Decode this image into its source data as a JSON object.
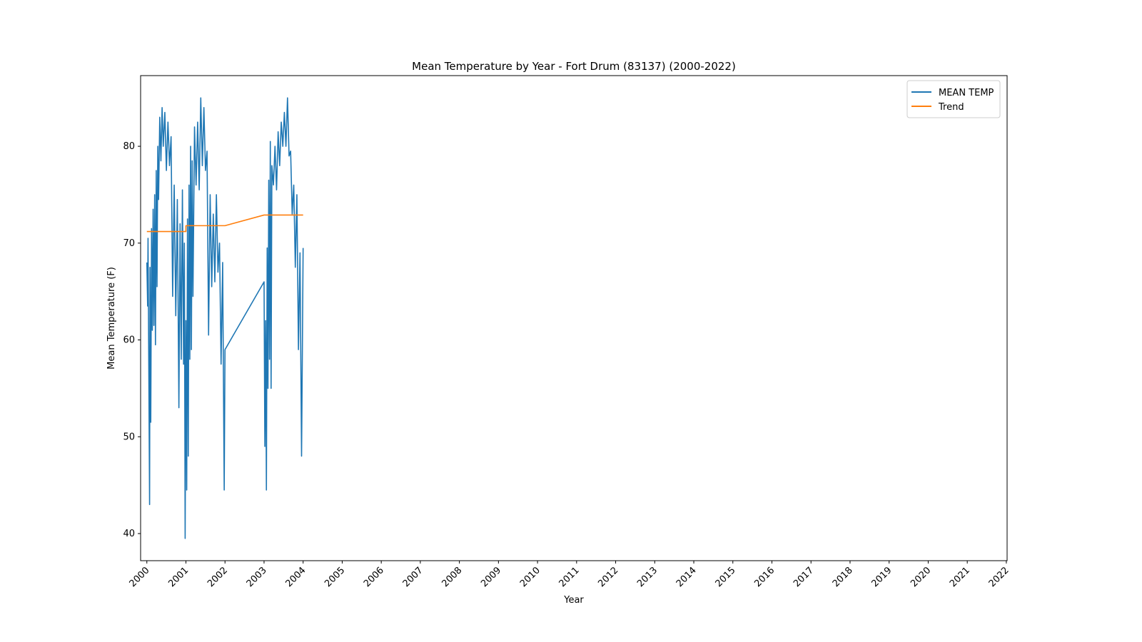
{
  "chart_data": {
    "type": "line",
    "title": "Mean Temperature by Year - Fort Drum (83137) (2000-2022)",
    "xlabel": "Year",
    "ylabel": "Mean Temperature (F)",
    "xlim": [
      1999.84,
      2022.02
    ],
    "ylim": [
      37.2,
      87.3
    ],
    "xticks": [
      2000,
      2001,
      2002,
      2003,
      2004,
      2005,
      2006,
      2007,
      2008,
      2009,
      2010,
      2011,
      2012,
      2013,
      2014,
      2015,
      2016,
      2017,
      2018,
      2019,
      2020,
      2021,
      2022
    ],
    "yticks": [
      40,
      50,
      60,
      70,
      80
    ],
    "legend": "upper right",
    "grid": false,
    "series": [
      {
        "name": "MEAN TEMP",
        "color": "#1f77b4",
        "x": [
          2000.0,
          2000.02,
          2000.03,
          2000.05,
          2000.07,
          2000.08,
          2000.1,
          2000.12,
          2000.14,
          2000.16,
          2000.18,
          2000.2,
          2000.22,
          2000.24,
          2000.26,
          2000.28,
          2000.3,
          2000.33,
          2000.36,
          2000.39,
          2000.42,
          2000.46,
          2000.5,
          2000.54,
          2000.58,
          2000.62,
          2000.66,
          2000.7,
          2000.74,
          2000.78,
          2000.82,
          2000.85,
          2000.88,
          2000.91,
          2000.94,
          2000.96,
          2000.98,
          2001.0,
          2001.02,
          2001.04,
          2001.06,
          2001.08,
          2001.1,
          2001.12,
          2001.14,
          2001.16,
          2001.18,
          2001.22,
          2001.26,
          2001.3,
          2001.34,
          2001.38,
          2001.42,
          2001.46,
          2001.5,
          2001.54,
          2001.58,
          2001.62,
          2001.66,
          2001.7,
          2001.74,
          2001.78,
          2001.82,
          2001.86,
          2001.9,
          2001.94,
          2001.98,
          2002.0,
          2003.0,
          2003.02,
          2003.04,
          2003.06,
          2003.08,
          2003.1,
          2003.12,
          2003.14,
          2003.16,
          2003.18,
          2003.2,
          2003.24,
          2003.28,
          2003.32,
          2003.36,
          2003.4,
          2003.44,
          2003.48,
          2003.52,
          2003.56,
          2003.6,
          2003.64,
          2003.68,
          2003.72,
          2003.76,
          2003.8,
          2003.84,
          2003.88,
          2003.92,
          2003.96,
          2004.0
        ],
        "values": [
          68,
          63.5,
          70.5,
          57,
          43,
          67.5,
          51.5,
          71.5,
          61,
          73.5,
          61.5,
          75,
          59.5,
          77.5,
          65.5,
          80,
          74.5,
          83,
          78.5,
          84,
          80,
          83.5,
          77.5,
          82.5,
          78,
          81,
          64.5,
          76,
          62.5,
          74.5,
          53,
          72,
          58,
          75.5,
          57.5,
          70,
          39.5,
          62,
          44.5,
          72.5,
          48,
          76,
          58,
          80,
          59,
          78.5,
          64.5,
          82,
          76,
          82.5,
          75.5,
          85,
          78,
          84,
          77.5,
          79.5,
          60.5,
          75,
          65.5,
          73,
          66,
          75,
          67,
          70,
          57.5,
          68,
          44.5,
          59,
          66,
          49,
          62,
          44.5,
          69.5,
          55,
          76.5,
          58,
          80.5,
          55,
          78,
          76,
          80,
          75.5,
          81.5,
          78,
          82.5,
          80,
          83.5,
          80,
          85,
          79,
          79.5,
          73,
          76,
          67.5,
          75,
          59,
          69,
          48,
          69.5
        ]
      },
      {
        "name": "Trend",
        "color": "#ff7f0e",
        "x": [
          2000,
          2001,
          2001,
          2002,
          2003,
          2004
        ],
        "values": [
          71.2,
          71.2,
          71.8,
          71.8,
          72.9,
          72.9
        ]
      }
    ]
  }
}
